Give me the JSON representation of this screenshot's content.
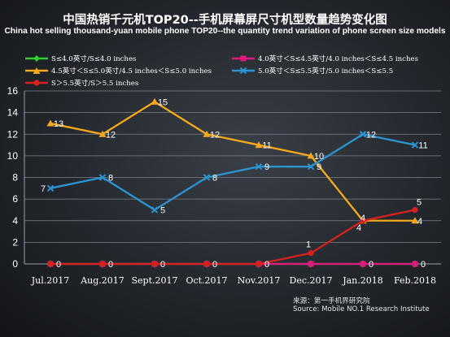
{
  "header": {
    "title_cn": "中国热销千元机TOP20--手机屏幕屏尺寸机型数量趋势变化图",
    "title_en": "China hot selling thousand-yuan mobile phone TOP20--the quantity trend variation of phone screen size models"
  },
  "source": {
    "cn": "来源：第一手机界研究院",
    "en": "Source: Mobile NO.1 Research Institute"
  },
  "chart_data": {
    "type": "line",
    "title": "中国热销千元机TOP20--手机屏幕屏尺寸机型数量趋势变化图",
    "xlabel": "",
    "ylabel": "",
    "ylim": [
      0,
      16
    ],
    "yticks": [
      0,
      2,
      4,
      6,
      8,
      10,
      12,
      14,
      16
    ],
    "grid": true,
    "legend_position": "top",
    "categories": [
      "Jul.2017",
      "Aug.2017",
      "Sept.2017",
      "Oct.2017",
      "Nov.2017",
      "Dec.2017",
      "Jan.2018",
      "Feb.2018"
    ],
    "series": [
      {
        "name": "S≤4.0英寸/S≤4.0 inches",
        "color": "#33cc33",
        "marker": "diamond",
        "values": [
          0,
          0,
          0,
          0,
          0,
          0,
          0,
          0
        ],
        "show_labels": false
      },
      {
        "name": "4.0英寸＜S≤4.5英寸/4.0 inches＜S≤4.5 inches",
        "color": "#e0197a",
        "marker": "square",
        "values": [
          0,
          0,
          0,
          0,
          0,
          0,
          0,
          0
        ],
        "show_labels": false
      },
      {
        "name": "4.5英寸＜S≤5.0英寸/4.5 inches＜S≤5.0 inches",
        "color": "#f5a81c",
        "marker": "triangle",
        "values": [
          13,
          12,
          15,
          12,
          11,
          10,
          4,
          4
        ],
        "show_labels": true
      },
      {
        "name": "5.0英寸＜S≤5.5英寸/5.0 inches＜S≤5.5",
        "color": "#2b94d1",
        "marker": "x",
        "values": [
          7,
          8,
          5,
          8,
          9,
          9,
          12,
          11
        ],
        "show_labels": true
      },
      {
        "name": "S＞5.5英寸/S＞5.5 inches",
        "color": "#d8201f",
        "marker": "circle",
        "values": [
          0,
          0,
          0,
          0,
          0,
          1,
          4,
          5
        ],
        "show_labels": true
      }
    ]
  }
}
